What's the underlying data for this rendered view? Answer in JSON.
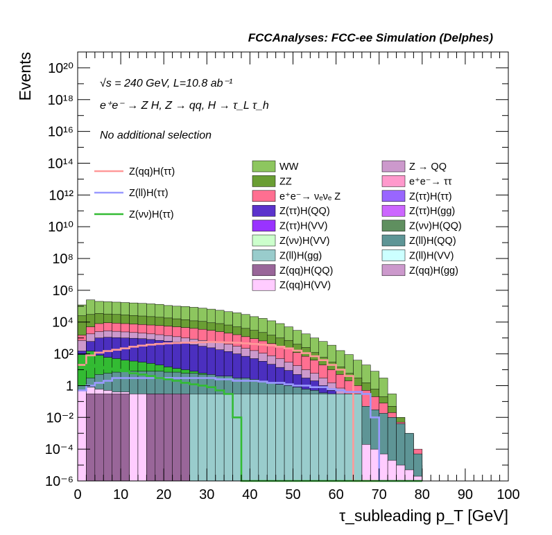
{
  "header": {
    "title": "FCCAnalyses: FCC-ee Simulation (Delphes)"
  },
  "info": {
    "energy": "√s = 240 GeV, L=10.8 ab⁻¹",
    "process": "e⁺e⁻ → Z H, Z → qq, H → τ_L τ_h",
    "selection": "No additional selection"
  },
  "chart_data": {
    "type": "area",
    "title": "",
    "xlabel": "τ_subleading p_T [GeV]",
    "ylabel": "Events",
    "xlim": [
      0,
      100
    ],
    "ylim": [
      1e-06,
      1e+21
    ],
    "log_y": true,
    "x_ticks": [
      "0",
      "10",
      "20",
      "30",
      "40",
      "50",
      "60",
      "70",
      "80",
      "90",
      "100"
    ],
    "y_ticks": [
      "10⁻⁶",
      "10⁻⁴",
      "10⁻²",
      "1",
      "10²",
      "10⁴",
      "10⁶",
      "10⁸",
      "10¹⁰",
      "10¹²",
      "10¹⁴",
      "10¹⁶",
      "10¹⁸",
      "10²⁰"
    ],
    "bin_edges": [
      0,
      2,
      4,
      6,
      8,
      10,
      12,
      14,
      16,
      18,
      20,
      22,
      24,
      26,
      28,
      30,
      32,
      34,
      36,
      38,
      40,
      42,
      44,
      46,
      48,
      50,
      52,
      54,
      56,
      58,
      60,
      62,
      64,
      66,
      68,
      70,
      72,
      74,
      76,
      78,
      80
    ],
    "stack_levels": [
      {
        "name": "WW",
        "color": "#8dc65f",
        "values": [
          120000,
          250000,
          200000,
          190000,
          180000,
          170000,
          160000,
          150000,
          140000,
          130000,
          110000,
          100000,
          95000,
          85000,
          75000,
          65000,
          55000,
          45000,
          38000,
          30000,
          22000,
          17000,
          12000,
          8000,
          5000,
          3000,
          1800,
          1000,
          600,
          350,
          160,
          90,
          40,
          20,
          8,
          3,
          0.3,
          0.002,
          8e-05,
          1.5e-06
        ]
      },
      {
        "name": "ZZ",
        "color": "#6a9e34",
        "values": [
          25000,
          30000,
          35000,
          32000,
          30000,
          28000,
          26000,
          24000,
          22000,
          20000,
          18000,
          16000,
          14000,
          12000,
          11000,
          9000,
          8000,
          6500,
          5000,
          4000,
          3000,
          2200,
          1500,
          1000,
          700,
          400,
          250,
          120,
          60,
          30,
          15,
          6,
          3,
          1.5,
          0.6,
          0.2,
          0.05,
          0.01,
          0.0008,
          2e-05
        ]
      },
      {
        "name": "e⁺e⁻→ νₑνₑ Z",
        "color": "#ff6f91",
        "values": [
          1500,
          5000,
          8000,
          9000,
          8500,
          8000,
          7500,
          7000,
          6500,
          6000,
          5500,
          5000,
          4500,
          4000,
          3500,
          3000,
          2500,
          2000,
          1600,
          1200,
          900,
          650,
          450,
          300,
          200,
          120,
          70,
          40,
          20,
          10,
          5,
          2,
          1,
          0.5,
          0.2,
          0.08,
          0.02,
          0.005,
          0.001,
          0.0001
        ]
      },
      {
        "name": "Z → QQ",
        "color": "#cc99cc",
        "values": [
          700,
          1800,
          2500,
          2800,
          2600,
          2400,
          2200,
          2000,
          1800,
          1600,
          1400,
          1200,
          1000,
          850,
          700,
          600,
          500,
          400,
          300,
          220,
          160,
          110,
          75,
          50,
          30,
          18,
          10,
          6,
          3,
          1.5,
          0.7,
          0.3,
          0.1,
          0.05,
          0.02,
          0.008,
          0.002,
          0.0005,
          0.0001,
          1e-05
        ]
      },
      {
        "name": "Z(ττ)H(ττ)",
        "color": "#4b2fbf",
        "values": [
          150,
          600,
          1000,
          1100,
          1050,
          1000,
          950,
          900,
          800,
          700,
          620,
          540,
          460,
          380,
          300,
          240,
          180,
          140,
          100,
          70,
          50,
          34,
          22,
          14,
          9,
          5,
          3,
          2,
          1,
          0.5,
          0.25,
          0.1,
          0.05,
          0.02,
          0.008,
          0.003,
          0.001,
          0.0003,
          6e-05,
          1e-05
        ]
      },
      {
        "name": "Z(νν)H(ττ)",
        "color": "#33bb33",
        "values": [
          90,
          150,
          80,
          60,
          50,
          40,
          35,
          30,
          25,
          20,
          15,
          12,
          10,
          8,
          6,
          4,
          3,
          2,
          1.5,
          1,
          0.8,
          0.6,
          0.4,
          0.3,
          0.2,
          0.15,
          0.1,
          0.08,
          0.06,
          0.04,
          0.02,
          0.01,
          0.005,
          0.002,
          0.001,
          0.0005,
          0.0002,
          5e-05,
          1e-05,
          1e-06
        ]
      },
      {
        "name": "Z(ll)H(QQ)",
        "color": "#5e9596",
        "values": [
          1,
          3,
          5,
          6,
          7,
          8,
          8,
          8,
          8,
          8,
          7,
          7,
          6,
          6,
          5,
          5,
          4,
          4,
          3,
          3,
          2.5,
          2,
          1.6,
          1.2,
          1,
          0.8,
          0.6,
          0.5,
          0.35,
          0.25,
          0.17,
          0.1,
          0.07,
          0.05,
          0.03,
          0.018,
          0.01,
          0.004,
          0.001,
          5e-05
        ]
      },
      {
        "name": "Z(qq)H(VV)",
        "color": "#ffccff",
        "values": [
          0.5,
          0.8,
          0.6,
          0.5,
          0.4,
          0.4,
          0.3,
          0.3,
          0.3,
          0.3,
          0.25,
          0.2,
          0.2,
          0.15,
          0.1,
          0.1,
          0.08,
          0.06,
          0.05,
          0.04,
          0.03,
          0.025,
          0.02,
          0.015,
          0.01,
          0.008,
          0.006,
          0.004,
          0.003,
          0.002,
          0.0015,
          0.001,
          0.0005,
          0.0002,
          0.0001,
          5e-05,
          2e-05,
          1e-05,
          5e-06,
          2e-06
        ]
      },
      {
        "name": "Z(ll)H(gg)",
        "color": "#99cccc",
        "values": [
          1e-06,
          1e-06,
          1e-06,
          1e-06,
          1e-06,
          1e-06,
          1e-06,
          1e-06,
          1e-06,
          1e-06,
          1e-06,
          1e-06,
          1e-06,
          0.3,
          0.3,
          0.3,
          0.3,
          0.3,
          0.3,
          0.3,
          0.3,
          0.3,
          0.3,
          0.3,
          0.3,
          0.3,
          0.3,
          0.3,
          0.3,
          0.3,
          0.3,
          0.3,
          0.3,
          1e-06,
          1e-06,
          1e-06,
          1e-06,
          1e-06,
          1e-06,
          1e-06
        ]
      },
      {
        "name": "Z(qq)H(QQ)",
        "color": "#996699",
        "values": [
          1e-06,
          0.3,
          0.3,
          0.3,
          0.3,
          0.3,
          1e-06,
          1e-06,
          0.3,
          0.3,
          0.3,
          0.3,
          0.3,
          1e-06,
          1e-06,
          1e-06,
          1e-06,
          1e-06,
          1e-06,
          1e-06,
          1e-06,
          1e-06,
          1e-06,
          1e-06,
          1e-06,
          1e-06,
          1e-06,
          1e-06,
          1e-06,
          1e-06,
          1e-06,
          1e-06,
          1e-06,
          1e-06,
          1e-06,
          1e-06,
          1e-06,
          1e-06,
          1e-06,
          1e-06
        ]
      }
    ],
    "legend_stack": [
      {
        "name": "WW",
        "color": "#8dc65f"
      },
      {
        "name": "Z → QQ",
        "color": "#cc99cc"
      },
      {
        "name": "ZZ",
        "color": "#6a9e34"
      },
      {
        "name": "e⁺e⁻→ ττ",
        "color": "#ff99cc"
      },
      {
        "name": "e⁺e⁻→ νₑνₑ Z",
        "color": "#ff6f91"
      },
      {
        "name": "Z(ττ)H(ττ)",
        "color": "#9966ff"
      },
      {
        "name": "Z(ττ)H(QQ)",
        "color": "#5b33cc"
      },
      {
        "name": "Z(ττ)H(gg)",
        "color": "#cc66ff"
      },
      {
        "name": "Z(ττ)H(VV)",
        "color": "#9933ff"
      },
      {
        "name": "Z(νν)H(QQ)",
        "color": "#5f8f5f"
      },
      {
        "name": "Z(νν)H(VV)",
        "color": "#ccffcc"
      },
      {
        "name": "Z(ll)H(QQ)",
        "color": "#5e9596"
      },
      {
        "name": "Z(ll)H(gg)",
        "color": "#99cccc"
      },
      {
        "name": "Z(ll)H(VV)",
        "color": "#ccffff"
      },
      {
        "name": "Z(qq)H(QQ)",
        "color": "#996699"
      },
      {
        "name": "Z(qq)H(gg)",
        "color": "#cc99cc"
      },
      {
        "name": "Z(qq)H(VV)",
        "color": "#ffccff"
      }
    ],
    "signal_lines": [
      {
        "name": "Z(qq)H(ττ)",
        "color": "#ff9999",
        "values": [
          20,
          80,
          120,
          150,
          180,
          220,
          280,
          330,
          380,
          420,
          460,
          480,
          500,
          520,
          540,
          560,
          540,
          520,
          500,
          460,
          420,
          380,
          340,
          280,
          220,
          160,
          110,
          70,
          40,
          20,
          10,
          4,
          1e-06,
          1e-06,
          1e-06,
          1e-06,
          1e-06,
          1e-06,
          1e-06,
          1e-06
        ]
      },
      {
        "name": "Z(ll)H(ττ)",
        "color": "#9999ff",
        "values": [
          0.5,
          1,
          1.5,
          2,
          3,
          3,
          3,
          3,
          3,
          3,
          3,
          3,
          3,
          3,
          3,
          3,
          2.5,
          2.5,
          2,
          2,
          2,
          1.8,
          1.5,
          1.5,
          1.2,
          1,
          1,
          0.8,
          0.8,
          0.6,
          0.5,
          0.4,
          0.4,
          0.3,
          0.01,
          1e-06,
          1e-06,
          1e-06,
          1e-06,
          1e-06
        ]
      },
      {
        "name": "Z(νν)H(ττ)",
        "color": "#33bb33",
        "values": [
          10,
          20,
          15,
          12,
          10,
          8,
          6,
          5,
          4,
          3,
          2.5,
          2,
          1.5,
          1.2,
          1,
          0.8,
          0.5,
          0.3,
          0.01,
          1e-06,
          1e-06,
          1e-06,
          1e-06,
          1e-06,
          1e-06,
          1e-06,
          1e-06,
          1e-06,
          1e-06,
          1e-06,
          1e-06,
          1e-06,
          1e-06,
          1e-06,
          1e-06,
          1e-06,
          1e-06,
          1e-06,
          1e-06,
          1e-06
        ]
      }
    ]
  }
}
